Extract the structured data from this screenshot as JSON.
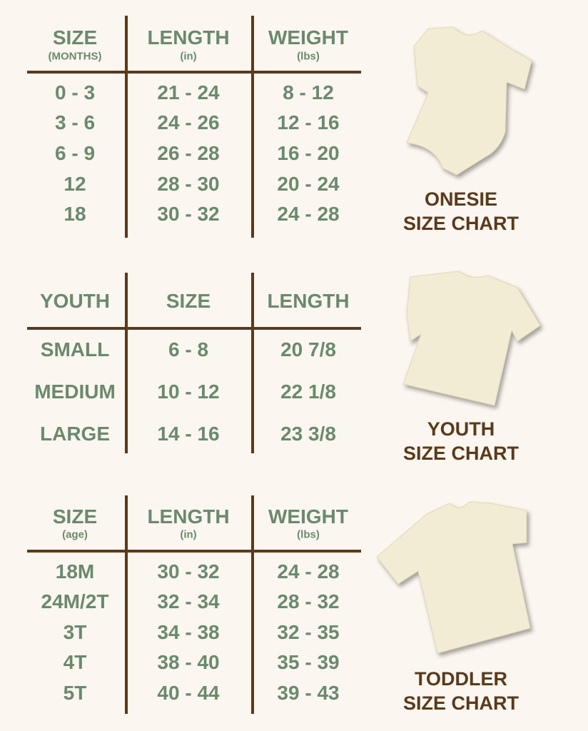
{
  "colors": {
    "background": "#fbf6ef",
    "text": "#6b8a6d",
    "lines": "#5b3a1b",
    "garment": "#f3ecd4"
  },
  "sections": [
    {
      "headers": [
        {
          "main": "SIZE",
          "sub": "(MONTHS)"
        },
        {
          "main": "LENGTH",
          "sub": "(in)"
        },
        {
          "main": "WEIGHT",
          "sub": "(lbs)"
        }
      ],
      "rows": [
        [
          "0 - 3",
          "21 - 24",
          "8 - 12"
        ],
        [
          "3 - 6",
          "24 - 26",
          "12 - 16"
        ],
        [
          "6 - 9",
          "26 - 28",
          "16 - 20"
        ],
        [
          "12",
          "28 - 30",
          "20 - 24"
        ],
        [
          "18",
          "30 - 32",
          "24 - 28"
        ]
      ],
      "label": [
        "ONESIE",
        "SIZE CHART"
      ],
      "icon": "onesie-image"
    },
    {
      "headers": [
        {
          "main": "YOUTH",
          "sub": ""
        },
        {
          "main": "SIZE",
          "sub": ""
        },
        {
          "main": "LENGTH",
          "sub": ""
        }
      ],
      "rows": [
        [
          "SMALL",
          "6 - 8",
          "20 7/8"
        ],
        [
          "MEDIUM",
          "10 - 12",
          "22 1/8"
        ],
        [
          "LARGE",
          "14 - 16",
          "23 3/8"
        ]
      ],
      "label": [
        "YOUTH",
        "SIZE CHART"
      ],
      "icon": "youth-tshirt-image"
    },
    {
      "headers": [
        {
          "main": "SIZE",
          "sub": "(age)"
        },
        {
          "main": "LENGTH",
          "sub": "(in)"
        },
        {
          "main": "WEIGHT",
          "sub": "(lbs)"
        }
      ],
      "rows": [
        [
          "18M",
          "30 - 32",
          "24 - 28"
        ],
        [
          "24M/2T",
          "32 - 34",
          "28 - 32"
        ],
        [
          "3T",
          "34 - 38",
          "32 - 35"
        ],
        [
          "4T",
          "38 - 40",
          "35 - 39"
        ],
        [
          "5T",
          "40 - 44",
          "39 - 43"
        ]
      ],
      "label": [
        "TODDLER",
        "SIZE CHART"
      ],
      "icon": "toddler-tshirt-image"
    }
  ]
}
